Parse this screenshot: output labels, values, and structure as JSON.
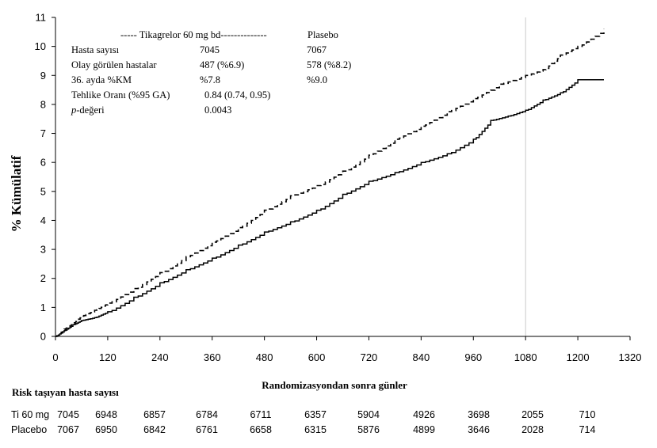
{
  "chart_data": {
    "type": "line",
    "xlabel": "Randomizasyondan sonra günler",
    "ylabel": "% Kümülatif",
    "xlim": [
      0,
      1320
    ],
    "ylim": [
      0,
      11
    ],
    "x_ticks": [
      0,
      120,
      240,
      360,
      480,
      600,
      720,
      840,
      960,
      1080,
      1200,
      1320
    ],
    "y_ticks": [
      0,
      1,
      2,
      3,
      4,
      5,
      6,
      7,
      8,
      9,
      10,
      11
    ],
    "reference_line_x": 1080,
    "grid": false,
    "legend": {
      "header_left": "----- Tikagrelor 60 mg bd--------------",
      "header_right": "Plasebo",
      "rows": [
        {
          "label": "Hasta sayısı",
          "col1": "7045",
          "col2": "7067"
        },
        {
          "label": "Olay görülen hastalar",
          "col1": "487 (%6.9)",
          "col2": "578 (%8.2)"
        },
        {
          "label": "36. ayda %KM",
          "col1": "%7.8",
          "col2": "%9.0"
        },
        {
          "label": "Tehlike Oranı (%95 GA)",
          "col1": "0.84 (0.74, 0.95)",
          "col2": ""
        },
        {
          "label_italic": "p",
          "label": "-değeri",
          "col1": "0.0043",
          "col2": ""
        }
      ]
    },
    "series": [
      {
        "name": "Tikagrelor 60 mg bd",
        "style": "solid",
        "color": "#000000",
        "x": [
          0,
          20,
          40,
          60,
          90,
          120,
          180,
          240,
          300,
          360,
          420,
          480,
          540,
          600,
          660,
          720,
          780,
          840,
          900,
          960,
          1000,
          1040,
          1080,
          1120,
          1160,
          1200,
          1260
        ],
        "y": [
          0,
          0.2,
          0.4,
          0.55,
          0.65,
          0.85,
          1.35,
          1.85,
          2.3,
          2.7,
          3.15,
          3.6,
          3.95,
          4.35,
          4.9,
          5.35,
          5.65,
          6.0,
          6.3,
          6.8,
          7.45,
          7.6,
          7.8,
          8.15,
          8.4,
          8.85,
          8.85
        ]
      },
      {
        "name": "Plasebo",
        "style": "dashed",
        "color": "#000000",
        "x": [
          0,
          20,
          40,
          60,
          90,
          120,
          180,
          240,
          300,
          360,
          420,
          480,
          540,
          600,
          660,
          720,
          780,
          840,
          900,
          960,
          1020,
          1080,
          1120,
          1160,
          1200,
          1260
        ],
        "y": [
          0,
          0.25,
          0.45,
          0.7,
          0.9,
          1.15,
          1.65,
          2.2,
          2.75,
          3.25,
          3.75,
          4.35,
          4.85,
          5.2,
          5.7,
          6.25,
          6.8,
          7.25,
          7.75,
          8.2,
          8.7,
          9.0,
          9.2,
          9.7,
          10.0,
          10.6
        ]
      }
    ],
    "risk_table": {
      "title": "Risk taşıyan hasta sayısı",
      "rows": [
        {
          "label": "Ti 60 mg",
          "values": [
            "7045",
            "6948",
            "6857",
            "6784",
            "6711",
            "6357",
            "5904",
            "4926",
            "3698",
            "2055",
            "710"
          ]
        },
        {
          "label": "Placebo",
          "values": [
            "7067",
            "6950",
            "6842",
            "6761",
            "6658",
            "6315",
            "5876",
            "4899",
            "3646",
            "2028",
            "714"
          ]
        }
      ]
    }
  }
}
